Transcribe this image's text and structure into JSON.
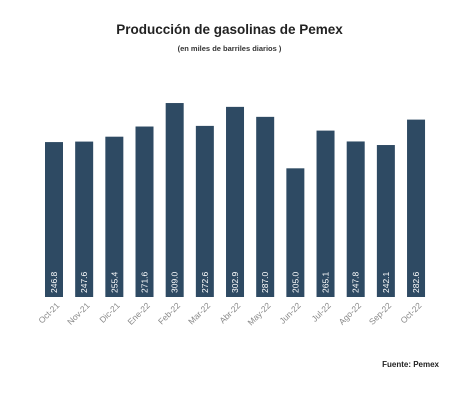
{
  "chart_data": {
    "type": "bar",
    "title": "Producción de gasolinas de Pemex",
    "subtitle": "(en miles de barriles diarios )",
    "source": "Fuente: Pemex",
    "categories": [
      "Oct-21",
      "Nov-21",
      "Dic-21",
      "Ene-22",
      "Feb-22",
      "Mar-22",
      "Abr-22",
      "May-22",
      "Jun-22",
      "Jul-22",
      "Ago-22",
      "Sep-22",
      "Oct-22"
    ],
    "values": [
      246.8,
      247.6,
      255.4,
      271.6,
      309.0,
      272.6,
      302.9,
      287.0,
      205.0,
      265.1,
      247.8,
      242.1,
      282.6
    ],
    "labels": [
      "246.8",
      "247.6",
      "255.4",
      "271.6",
      "309.0",
      "272.6",
      "302.9",
      "287.0",
      "205.0",
      "265.1",
      "247.8",
      "242.1",
      "282.6"
    ],
    "bar_color": "#2e4a63",
    "label_color": "#ffffff",
    "axis_label_color": "#8a8a8a",
    "grid": false,
    "legend": "none"
  }
}
